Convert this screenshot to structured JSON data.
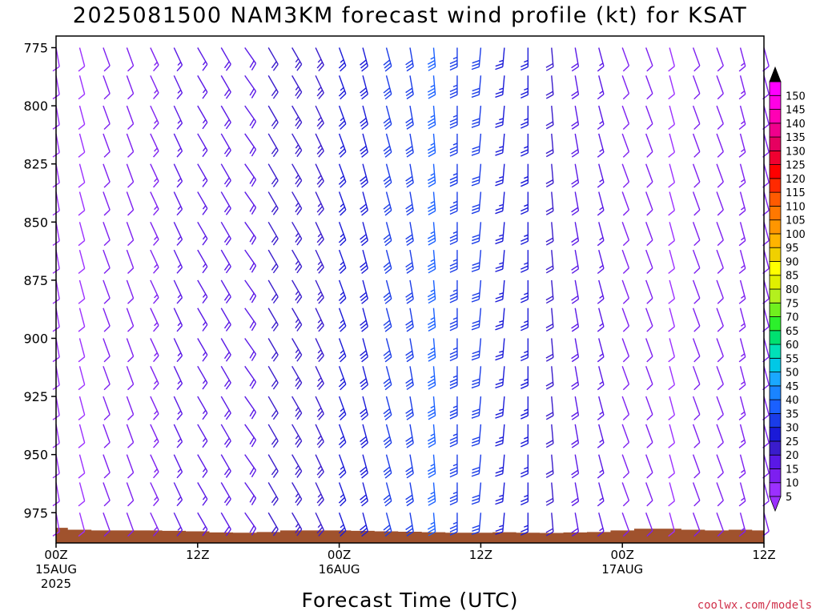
{
  "chart_data": {
    "type": "wind-barb profile",
    "title": "2025081500 NAM3KM forecast wind profile (kt) for KSAT",
    "xlabel": "Forecast Time (UTC)",
    "ylabel": "",
    "credit": "coolwx.com/models",
    "y_axis": {
      "ticks": [
        775,
        800,
        825,
        850,
        875,
        900,
        925,
        950,
        975
      ],
      "range_hpa": [
        770,
        988
      ],
      "reversed": true
    },
    "x_axis": {
      "range_hours": [
        0,
        60
      ],
      "ticks": [
        {
          "hour": 0,
          "line1": "00Z",
          "line2": "15AUG",
          "line3": "2025"
        },
        {
          "hour": 12,
          "line1": "12Z",
          "line2": "",
          "line3": ""
        },
        {
          "hour": 24,
          "line1": "00Z",
          "line2": "16AUG",
          "line3": ""
        },
        {
          "hour": 36,
          "line1": "12Z",
          "line2": "",
          "line3": ""
        },
        {
          "hour": 48,
          "line1": "00Z",
          "line2": "17AUG",
          "line3": ""
        },
        {
          "hour": 60,
          "line1": "12Z",
          "line2": "",
          "line3": ""
        }
      ]
    },
    "forecast_hours": [
      0,
      2,
      4,
      6,
      8,
      10,
      12,
      14,
      16,
      18,
      20,
      22,
      24,
      26,
      28,
      30,
      32,
      34,
      36,
      38,
      40,
      42,
      44,
      46,
      48,
      50,
      52,
      54,
      56,
      58,
      60
    ],
    "pressure_levels_hpa": [
      775,
      787,
      800,
      812,
      825,
      837,
      850,
      862,
      875,
      887,
      900,
      912,
      925,
      937,
      950,
      962,
      975
    ],
    "wind_speed_kt_by_time": [
      8,
      9,
      11,
      12,
      13,
      15,
      16,
      18,
      19,
      21,
      23,
      24,
      27,
      29,
      30,
      32,
      35,
      33,
      30,
      27,
      25,
      22,
      18,
      15,
      12,
      10,
      9,
      10,
      11,
      13,
      12
    ],
    "wind_dir_deg_by_time": [
      170,
      165,
      160,
      160,
      155,
      155,
      150,
      150,
      145,
      150,
      150,
      155,
      160,
      165,
      165,
      170,
      175,
      180,
      185,
      185,
      180,
      175,
      170,
      165,
      160,
      160,
      165,
      160,
      160,
      165,
      165
    ],
    "surface_pressure_hpa_by_time": [
      981.5,
      982.3,
      982.6,
      982.6,
      982.6,
      982.8,
      983.0,
      983.5,
      983.6,
      983.3,
      982.6,
      982.6,
      982.6,
      982.8,
      983.0,
      983.2,
      983.4,
      983.6,
      983.6,
      983.4,
      983.6,
      983.7,
      983.5,
      983.3,
      982.6,
      981.9,
      981.9,
      982.3,
      982.6,
      982.3,
      982.6
    ],
    "colorbar": {
      "unit": "kt",
      "labels": [
        5,
        10,
        15,
        20,
        25,
        30,
        35,
        40,
        45,
        50,
        55,
        60,
        65,
        70,
        75,
        80,
        85,
        90,
        95,
        100,
        105,
        110,
        115,
        120,
        125,
        130,
        135,
        140,
        145,
        150
      ],
      "colors": [
        "#9b30ff",
        "#7d1ff0",
        "#5a18e6",
        "#3a1ccc",
        "#1a1ad8",
        "#1a3ce8",
        "#1a60ff",
        "#1a84ff",
        "#1aa8ff",
        "#00c8e6",
        "#00e0b8",
        "#00e070",
        "#2cf02c",
        "#70f01e",
        "#b4f01e",
        "#e0f000",
        "#ffff00",
        "#f0d000",
        "#ffb400",
        "#ff9600",
        "#ff7800",
        "#ff5a00",
        "#ff2a00",
        "#ff0000",
        "#f00030",
        "#e60060",
        "#f0008c",
        "#ff00b4",
        "#ff00e6",
        "#ff00ff"
      ],
      "below_color": "#9b30ff",
      "above_color": "#000000"
    }
  }
}
